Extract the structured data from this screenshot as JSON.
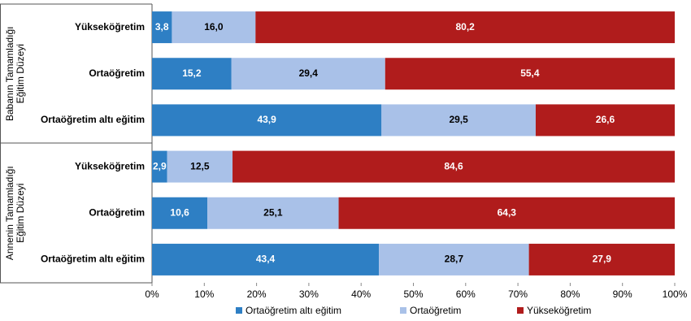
{
  "chart_data": {
    "type": "stacked-bar-horizontal",
    "groups": [
      {
        "label": [
          "Babanın Tamamladığı",
          "Eğitim Düzeyi"
        ],
        "categories": [
          "Yükseköğretim",
          "Ortaöğretim",
          "Ortaöğretim altı eğitim"
        ]
      },
      {
        "label": [
          "Annenin Tamamladığı",
          "Eğitim Düzeyi"
        ],
        "categories": [
          "Yükseköğretim",
          "Ortaöğretim",
          "Ortaöğretim altı eğitim"
        ]
      }
    ],
    "series": [
      {
        "name": "Ortaöğretim altı eğitim",
        "color": "#2e7fc4",
        "values": [
          3.8,
          15.2,
          43.9,
          2.9,
          10.6,
          43.4
        ],
        "value_labels": [
          "3,8",
          "15,2",
          "43,9",
          "2,9",
          "10,6",
          "43,4"
        ]
      },
      {
        "name": "Ortaöğretim",
        "color": "#a9c1e8",
        "values": [
          16.0,
          29.4,
          29.5,
          12.5,
          25.1,
          28.7
        ],
        "value_labels": [
          "16,0",
          "29,4",
          "29,5",
          "12,5",
          "25,1",
          "28,7"
        ]
      },
      {
        "name": "Yükseköğretim",
        "color": "#b01c1c",
        "values": [
          80.2,
          55.4,
          26.6,
          84.6,
          64.3,
          27.9
        ],
        "value_labels": [
          "80,2",
          "55,4",
          "26,6",
          "84,6",
          "64,3",
          "27,9"
        ]
      }
    ],
    "xlim": [
      0,
      100
    ],
    "xticks": [
      {
        "value": 0,
        "label": "0%"
      },
      {
        "value": 10,
        "label": "10%"
      },
      {
        "value": 20,
        "label": "20%"
      },
      {
        "value": 30,
        "label": "30%"
      },
      {
        "value": 40,
        "label": "40%"
      },
      {
        "value": 50,
        "label": "50%"
      },
      {
        "value": 60,
        "label": "60%"
      },
      {
        "value": 70,
        "label": "70%"
      },
      {
        "value": 80,
        "label": "80%"
      },
      {
        "value": 90,
        "label": "90%"
      },
      {
        "value": 100,
        "label": "100%"
      }
    ]
  }
}
